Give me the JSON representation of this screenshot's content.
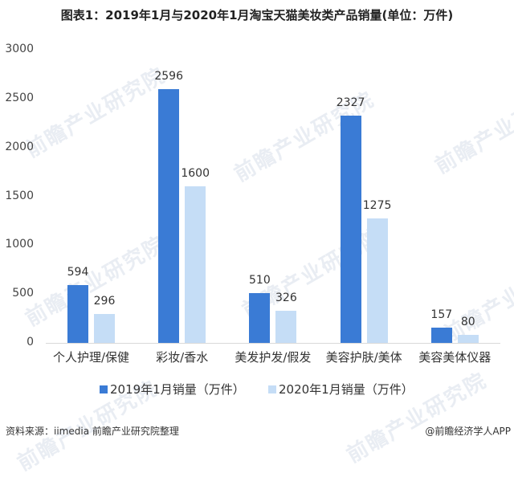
{
  "title": "图表1：2019年1月与2020年1月淘宝天猫美妆类产品销量(单位：万件)",
  "watermark": "前瞻产业研究院",
  "colors": {
    "series2019": "#3a7bd5",
    "series2020": "#c5ddf6"
  },
  "yaxis": {
    "ticks": [
      "3000",
      "2500",
      "2000",
      "1500",
      "1000",
      "500",
      "0"
    ]
  },
  "legend": {
    "s1": "2019年1月销量（万件）",
    "s2": "2020年1月销量（万件）"
  },
  "footer": {
    "source": "资料来源：iimedia   前瞻产业研究院整理",
    "credit": "@前瞻经济学人APP"
  },
  "chart_data": {
    "type": "bar",
    "title": "图表1：2019年1月与2020年1月淘宝天猫美妆类产品销量(单位：万件)",
    "categories": [
      "个人护理/保健",
      "彩妆/香水",
      "美发护发/假发",
      "美容护肤/美体",
      "美容美体仪器"
    ],
    "series": [
      {
        "name": "2019年1月销量（万件）",
        "values": [
          594,
          2596,
          510,
          2327,
          157
        ]
      },
      {
        "name": "2020年1月销量（万件）",
        "values": [
          296,
          1600,
          326,
          1275,
          80
        ]
      }
    ],
    "xlabel": "",
    "ylabel": "",
    "ylim": [
      0,
      3000
    ],
    "yticks": [
      0,
      500,
      1000,
      1500,
      2000,
      2500,
      3000
    ],
    "grid": false,
    "legend_position": "bottom"
  }
}
